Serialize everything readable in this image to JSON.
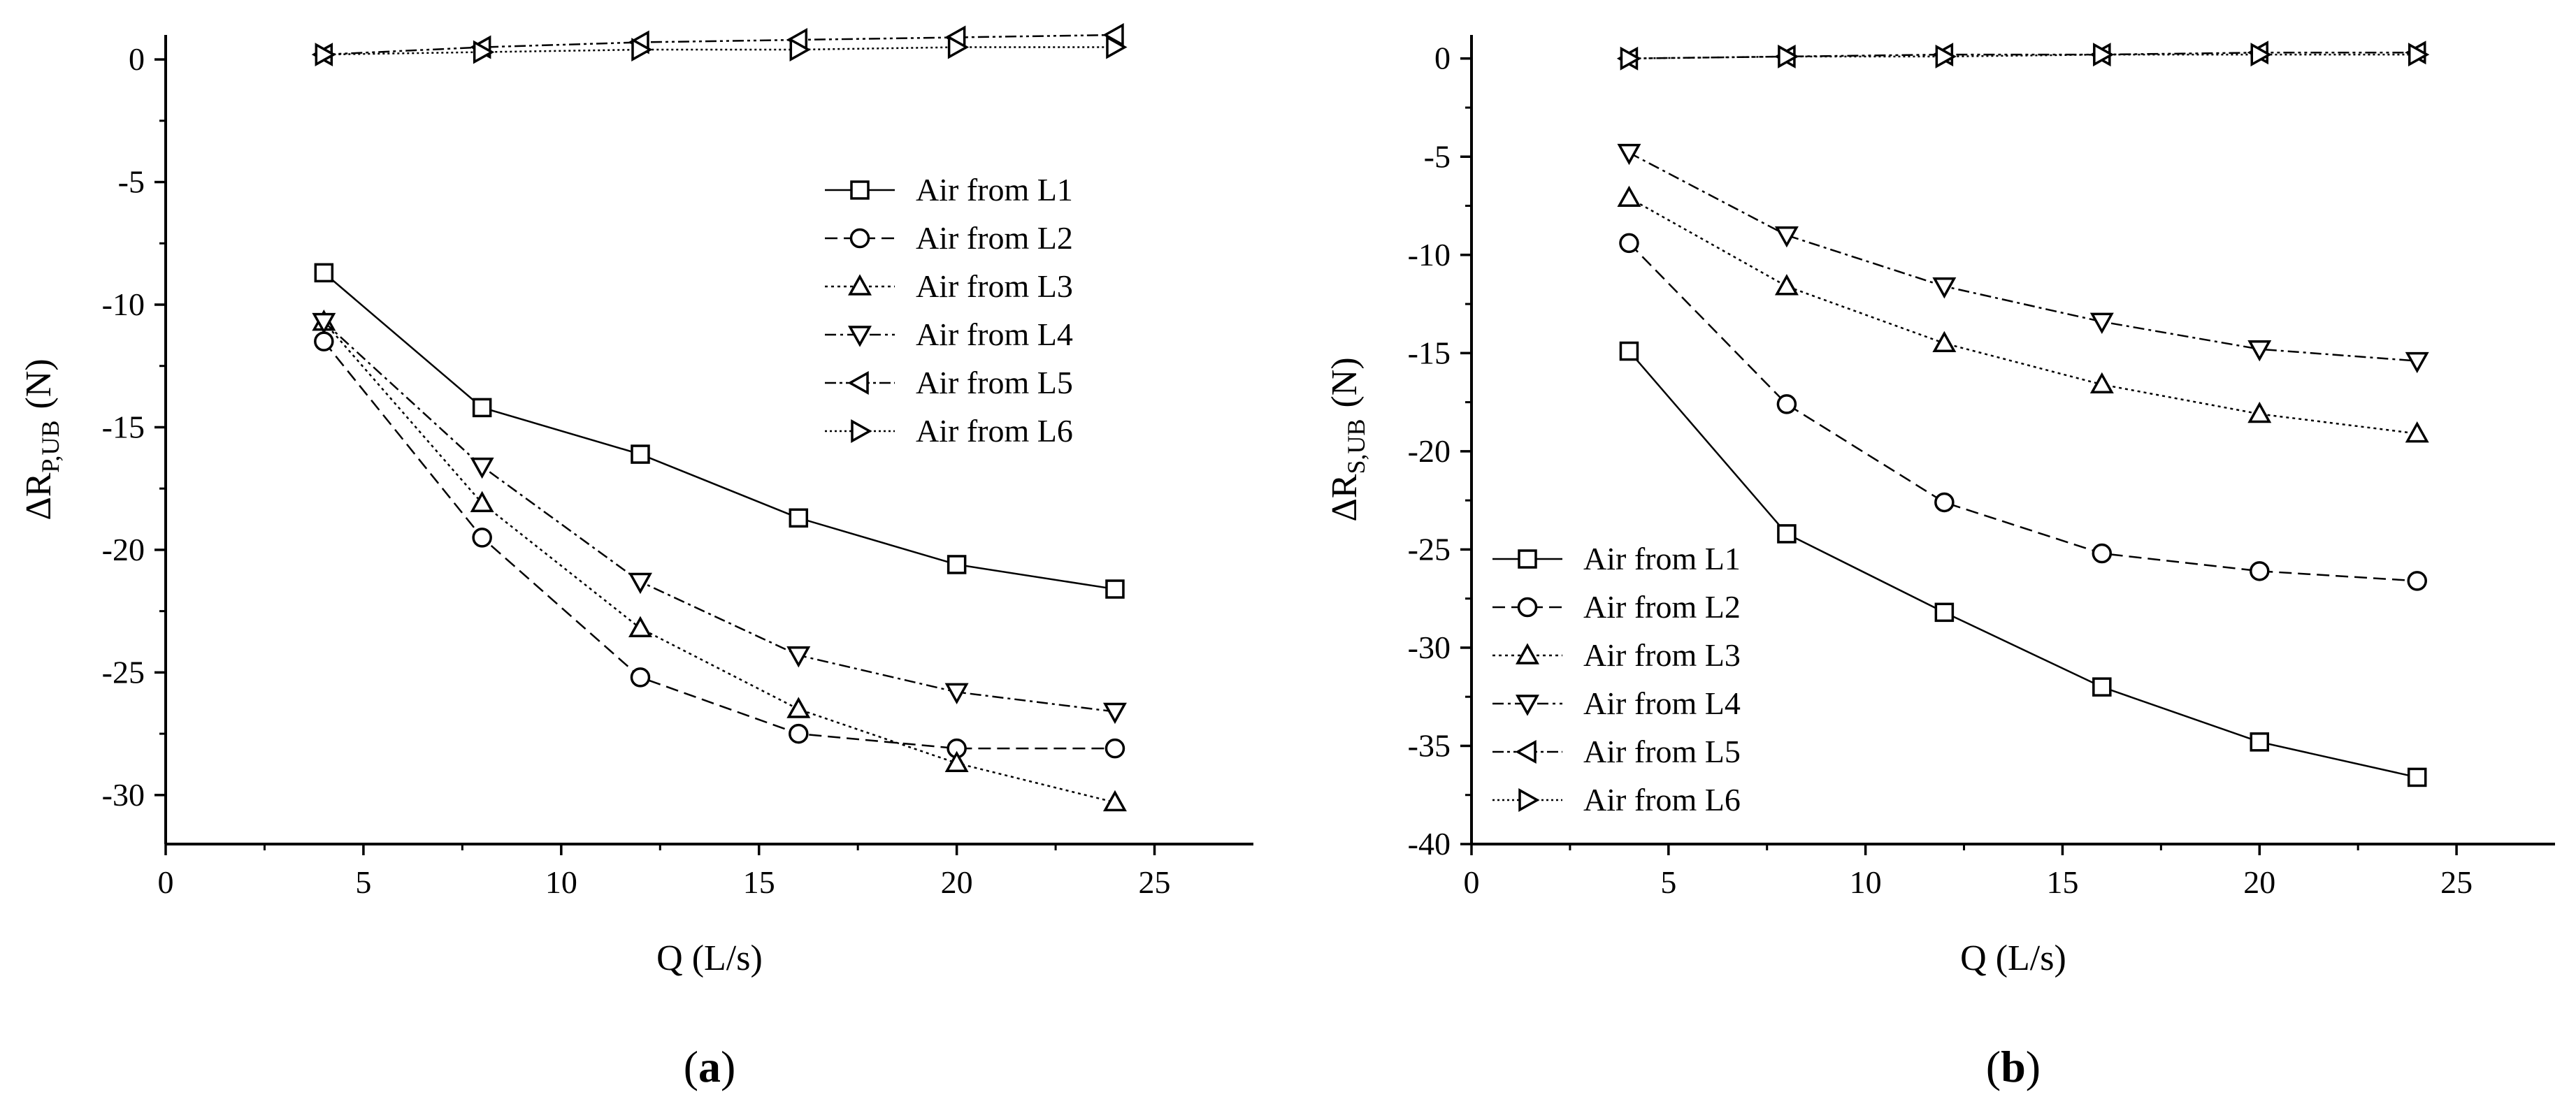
{
  "chart_data": [
    {
      "type": "line",
      "panel_label": "(a)",
      "panel_letter": "a",
      "xlabel": "Q (L/s)",
      "ylabel_main": "ΔR",
      "ylabel_sub": "P,UB",
      "ylabel_unit": "(N)",
      "xlim": [
        0,
        27.5
      ],
      "ylim": [
        -32,
        1
      ],
      "xticks": [
        0,
        5,
        10,
        15,
        20,
        25
      ],
      "yticks": [
        0,
        -5,
        -10,
        -15,
        -20,
        -25,
        -30
      ],
      "legend_position": "upper-right",
      "x": [
        4,
        8,
        12,
        16,
        20,
        24
      ],
      "series": [
        {
          "name": "Air from L1",
          "marker": "square",
          "dash": "solid",
          "values": [
            -8.7,
            -14.2,
            -16.1,
            -18.7,
            -20.6,
            -21.6
          ]
        },
        {
          "name": "Air from L2",
          "marker": "circle",
          "dash": "dashed",
          "values": [
            -11.5,
            -19.5,
            -25.2,
            -27.5,
            -28.1,
            -28.1
          ]
        },
        {
          "name": "Air from L3",
          "marker": "triangle-up",
          "dash": "dotted",
          "values": [
            -10.7,
            -18.1,
            -23.2,
            -26.5,
            -28.7,
            -30.3
          ]
        },
        {
          "name": "Air from L4",
          "marker": "triangle-down",
          "dash": "dashdot",
          "values": [
            -10.7,
            -16.6,
            -21.3,
            -24.3,
            -25.8,
            -26.6
          ]
        },
        {
          "name": "Air from L5",
          "marker": "triangle-left",
          "dash": "dashdotdot",
          "values": [
            0.2,
            0.5,
            0.7,
            0.8,
            0.9,
            1.0
          ]
        },
        {
          "name": "Air from L6",
          "marker": "triangle-right",
          "dash": "shortdot",
          "values": [
            0.2,
            0.3,
            0.4,
            0.4,
            0.5,
            0.5
          ]
        }
      ]
    },
    {
      "type": "line",
      "panel_label": "(b)",
      "panel_letter": "b",
      "xlabel": "Q (L/s)",
      "ylabel_main": "ΔR",
      "ylabel_sub": "S,UB",
      "ylabel_unit": "(N)",
      "xlim": [
        0,
        27.5
      ],
      "ylim": [
        -40,
        1.2
      ],
      "xticks": [
        0,
        5,
        10,
        15,
        20,
        25
      ],
      "yticks": [
        0,
        -5,
        -10,
        -15,
        -20,
        -25,
        -30,
        -35,
        -40
      ],
      "legend_position": "lower-left",
      "x": [
        4,
        8,
        12,
        16,
        20,
        24
      ],
      "series": [
        {
          "name": "Air from L1",
          "marker": "square",
          "dash": "solid",
          "values": [
            -14.9,
            -24.2,
            -28.2,
            -32.0,
            -34.8,
            -36.6
          ]
        },
        {
          "name": "Air from L2",
          "marker": "circle",
          "dash": "dashed",
          "values": [
            -9.4,
            -17.6,
            -22.6,
            -25.2,
            -26.1,
            -26.6
          ]
        },
        {
          "name": "Air from L3",
          "marker": "triangle-up",
          "dash": "dotted",
          "values": [
            -7.1,
            -11.6,
            -14.5,
            -16.6,
            -18.1,
            -19.1
          ]
        },
        {
          "name": "Air from L4",
          "marker": "triangle-down",
          "dash": "dashdot",
          "values": [
            -4.8,
            -9.0,
            -11.6,
            -13.4,
            -14.8,
            -15.4
          ]
        },
        {
          "name": "Air from L5",
          "marker": "triangle-left",
          "dash": "dashdotdot",
          "values": [
            0.0,
            0.1,
            0.2,
            0.2,
            0.3,
            0.3
          ]
        },
        {
          "name": "Air from L6",
          "marker": "triangle-right",
          "dash": "shortdot",
          "values": [
            0.0,
            0.1,
            0.1,
            0.2,
            0.2,
            0.2
          ]
        }
      ]
    }
  ]
}
